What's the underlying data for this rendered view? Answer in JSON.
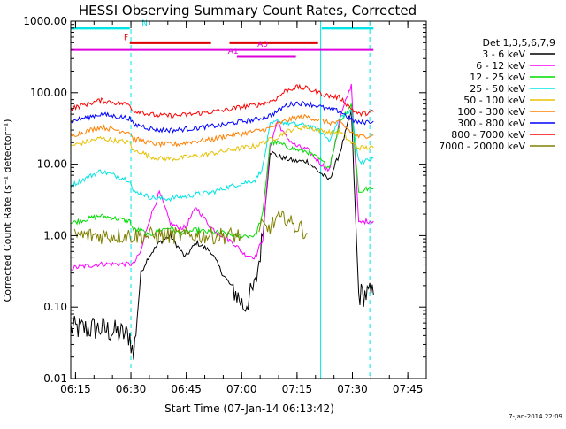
{
  "title": "HESSI Observing Summary Count Rates, Corrected",
  "xlabel": "Start Time (07-Jan-14 06:13:42)",
  "ylabel": "Corrected Count Rate (s⁻¹ detector⁻¹)",
  "footer_date": "7-Jan-2014 22:09",
  "legend": {
    "title": "Det 1,3,5,6,7,9",
    "items": [
      {
        "label": "3 - 6 keV",
        "color": "#000000"
      },
      {
        "label": "6 - 12 keV",
        "color": "#ff00ff"
      },
      {
        "label": "12 - 25 keV",
        "color": "#00dd00"
      },
      {
        "label": "25 - 50 keV",
        "color": "#00e5e5"
      },
      {
        "label": "50 - 100 keV",
        "color": "#e8c000"
      },
      {
        "label": "100 - 300 keV",
        "color": "#ff8000"
      },
      {
        "label": "300 - 800 keV",
        "color": "#0000ff"
      },
      {
        "label": "800 - 7000 keV",
        "color": "#ff0000"
      },
      {
        "label": "7000 - 20000 keV",
        "color": "#808000"
      }
    ]
  },
  "chart_data": {
    "type": "line",
    "title": "HESSI Observing Summary Count Rates, Corrected",
    "xlabel": "Start Time (07-Jan-14 06:13:42)",
    "ylabel": "Corrected Count Rate (s⁻¹ detector⁻¹)",
    "yscale": "log",
    "ylim": [
      0.01,
      1000
    ],
    "xlim": [
      "06:13:42",
      "07:50:00"
    ],
    "x_ticks": [
      "06:15",
      "06:30",
      "06:45",
      "07:00",
      "07:15",
      "07:30",
      "07:45"
    ],
    "y_ticks": [
      "0.01",
      "0.10",
      "1.00",
      "10.00",
      "100.00",
      "1000.00"
    ],
    "x_minutes": [
      0,
      8,
      16,
      17,
      19,
      21,
      24,
      27,
      29,
      31,
      34,
      38,
      41,
      44,
      47,
      50,
      52,
      54,
      56,
      58,
      61,
      64,
      67,
      70,
      73,
      76,
      78,
      80,
      82
    ],
    "series": [
      {
        "name": "3 - 6 keV",
        "color": "#000000",
        "values": [
          0.05,
          0.05,
          0.04,
          0.02,
          0.3,
          0.5,
          0.8,
          1.0,
          0.7,
          0.5,
          0.8,
          0.6,
          0.3,
          0.18,
          0.1,
          0.2,
          1.0,
          15,
          13,
          12,
          11,
          11,
          8,
          6,
          15,
          55,
          0.15,
          0.15,
          0.15
        ]
      },
      {
        "name": "6 - 12 keV",
        "color": "#ff00ff",
        "values": [
          0.35,
          0.4,
          0.4,
          0.4,
          0.6,
          1.5,
          4.0,
          1.5,
          1.3,
          1.3,
          2.5,
          1.3,
          1.0,
          0.8,
          0.55,
          0.5,
          0.9,
          18,
          40,
          25,
          18,
          16,
          11,
          8,
          45,
          130,
          1.5,
          1.6,
          1.6
        ]
      },
      {
        "name": "12 - 25 keV",
        "color": "#00dd00",
        "values": [
          1.5,
          1.9,
          1.6,
          1.2,
          1.2,
          1.0,
          1.2,
          1.3,
          1.1,
          1.1,
          1.2,
          1.1,
          1.1,
          1.0,
          1.0,
          1.0,
          2.0,
          20,
          20,
          18,
          16,
          15,
          12,
          9,
          40,
          70,
          4.0,
          4.5,
          4.5
        ]
      },
      {
        "name": "25 - 50 keV",
        "color": "#00e5e5",
        "values": [
          5,
          8,
          6,
          4,
          4,
          3.5,
          3.3,
          3.3,
          3.5,
          3.5,
          3.8,
          4,
          4.5,
          5,
          5.5,
          6,
          9,
          35,
          40,
          38,
          36,
          35,
          30,
          22,
          45,
          55,
          11,
          11,
          12
        ]
      },
      {
        "name": "50 - 100 keV",
        "color": "#e8c000",
        "values": [
          18,
          23,
          20,
          15,
          15,
          13,
          12,
          12,
          12,
          12.5,
          13,
          14,
          15,
          16,
          17,
          18,
          20,
          22,
          24,
          28,
          32,
          33,
          30,
          28,
          28,
          20,
          17,
          17,
          17
        ]
      },
      {
        "name": "100 - 300 keV",
        "color": "#ff8000",
        "values": [
          25,
          33,
          28,
          22,
          22,
          20,
          19,
          19,
          19,
          20,
          21,
          22,
          24,
          26,
          27,
          29,
          30,
          32,
          36,
          40,
          45,
          46,
          42,
          38,
          38,
          28,
          24,
          25,
          25
        ]
      },
      {
        "name": "300 - 800 keV",
        "color": "#0000ff",
        "values": [
          40,
          50,
          44,
          35,
          35,
          32,
          30,
          30,
          30,
          31,
          32,
          34,
          35,
          38,
          40,
          42,
          45,
          48,
          55,
          65,
          72,
          70,
          65,
          58,
          55,
          42,
          38,
          39,
          40
        ]
      },
      {
        "name": "800 - 7000 keV",
        "color": "#ff0000",
        "values": [
          60,
          78,
          68,
          55,
          55,
          50,
          48,
          48,
          48,
          49,
          51,
          54,
          56,
          60,
          64,
          67,
          70,
          75,
          85,
          105,
          120,
          115,
          100,
          90,
          85,
          60,
          50,
          52,
          54
        ]
      },
      {
        "name": "7000 - 20000 keV",
        "color": "#808000",
        "segments": [
          {
            "x": [
              1,
              3,
              5,
              8,
              11,
              15,
              20,
              28,
              38,
              46
            ],
            "values": [
              1.0,
              1.0,
              1.0,
              1.0,
              1.0,
              1.0,
              1.0,
              1.0,
              1.0,
              1.0
            ]
          },
          {
            "x": [
              51,
              52,
              53,
              55,
              56,
              57,
              58,
              60,
              62,
              64
            ],
            "values": [
              1.1,
              1.4,
              1.2,
              1.5,
              1.8,
              1.6,
              1.9,
              1.4,
              1.3,
              1.1
            ]
          }
        ]
      }
    ],
    "flags": [
      {
        "label": "N",
        "color": "#00e5e5",
        "level": 800,
        "intervals": [
          [
            0,
            16
          ],
          [
            68,
            82
          ]
        ]
      },
      {
        "label": "F",
        "color": "#dd0000",
        "level": 500,
        "intervals": [
          [
            16,
            38
          ],
          [
            43,
            67
          ]
        ]
      },
      {
        "label": "A0",
        "color": "#dd00dd",
        "level": 400,
        "intervals": [
          [
            0,
            82
          ]
        ]
      },
      {
        "label": "A1",
        "color": "#dd00dd",
        "level": 320,
        "intervals": [
          [
            45,
            61
          ]
        ]
      }
    ],
    "vlines": [
      {
        "x": 0,
        "color": "#00e5e5",
        "style": "solid"
      },
      {
        "x": 16.3,
        "color": "#00e5e5",
        "style": "dashed"
      },
      {
        "x": 67.7,
        "color": "#00e5e5",
        "style": "solid"
      },
      {
        "x": 81,
        "color": "#00e5e5",
        "style": "dashed"
      }
    ]
  }
}
